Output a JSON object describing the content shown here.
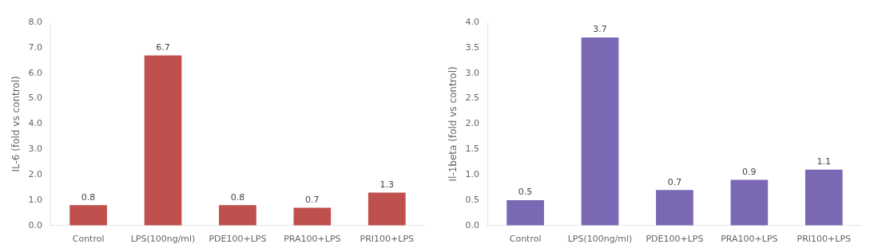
{
  "chart_data": [
    {
      "type": "bar",
      "categories": [
        "Control",
        "LPS(100ng/ml)",
        "PDE100+LPS",
        "PRA100+LPS",
        "PRI100+LPS"
      ],
      "values": [
        0.8,
        6.7,
        0.8,
        0.7,
        1.3
      ],
      "color": "#c0504d",
      "ylabel": "IL-6 (fold vs control)",
      "ylim": [
        0,
        8.0
      ],
      "yticks": [
        {
          "value": 0.0,
          "label": "0.0"
        },
        {
          "value": 1.0,
          "label": "1.0"
        },
        {
          "value": 2.0,
          "label": "2.0"
        },
        {
          "value": 3.0,
          "label": "3.0"
        },
        {
          "value": 4.0,
          "label": "4.0"
        },
        {
          "value": 5.0,
          "label": "5.0"
        },
        {
          "value": 6.0,
          "label": "6.0"
        },
        {
          "value": 7.0,
          "label": "7.0"
        },
        {
          "value": 8.0,
          "label": "8.0"
        }
      ],
      "grid": false,
      "data_labels": true
    },
    {
      "type": "bar",
      "categories": [
        "Control",
        "LPS(100ng/ml)",
        "PDE100+LPS",
        "PRA100+LPS",
        "PRI100+LPS"
      ],
      "values": [
        0.5,
        3.7,
        0.7,
        0.9,
        1.1
      ],
      "color": "#7b68b5",
      "ylabel": "Il-1beta (fold vs control)",
      "ylim": [
        0,
        4.0
      ],
      "yticks": [
        {
          "value": 0.0,
          "label": "0.0"
        },
        {
          "value": 0.5,
          "label": "0.5"
        },
        {
          "value": 1.0,
          "label": "1.0"
        },
        {
          "value": 1.5,
          "label": "1.5"
        },
        {
          "value": 2.0,
          "label": "2.0"
        },
        {
          "value": 2.5,
          "label": "2.5"
        },
        {
          "value": 3.0,
          "label": "3.0"
        },
        {
          "value": 3.5,
          "label": "3.5"
        },
        {
          "value": 4.0,
          "label": "4.0"
        }
      ],
      "grid": false,
      "data_labels": true
    }
  ]
}
